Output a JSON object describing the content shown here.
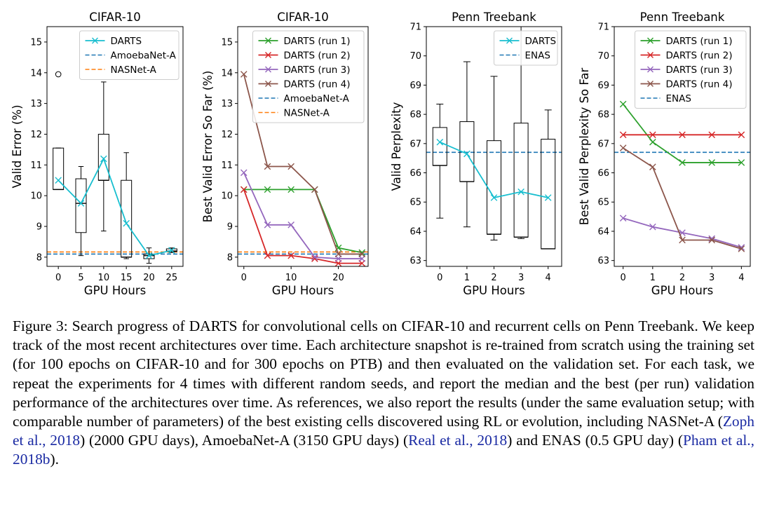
{
  "colors": {
    "cyan": "#17becf",
    "blue_dashed": "#1f77b4",
    "orange_dashed": "#ff7f0e",
    "green": "#2ca02c",
    "red": "#d62728",
    "purple": "#9467bd",
    "brown": "#8c564b",
    "citation": "#1a2aa3"
  },
  "chart_data": [
    {
      "type": "box",
      "title": "CIFAR-10",
      "xlabel": "GPU Hours",
      "ylabel": "Valid Error (%)",
      "xlim": [
        -2.5,
        27.5
      ],
      "ylim": [
        7.7,
        15.5
      ],
      "xticks": [
        0,
        5,
        10,
        15,
        20,
        25
      ],
      "yticks": [
        8,
        9,
        10,
        11,
        12,
        13,
        14,
        15
      ],
      "boxes": [
        {
          "x": 0,
          "whisker_low": 10.2,
          "q1": 10.2,
          "median": 10.2,
          "q3": 11.55,
          "whisker_high": 11.55,
          "outliers": [
            13.95
          ]
        },
        {
          "x": 5,
          "whisker_low": 8.05,
          "q1": 8.8,
          "median": 9.75,
          "q3": 10.55,
          "whisker_high": 10.95,
          "outliers": []
        },
        {
          "x": 10,
          "whisker_low": 8.85,
          "q1": 10.5,
          "median": 10.5,
          "q3": 12.0,
          "whisker_high": 13.7,
          "outliers": []
        },
        {
          "x": 15,
          "whisker_low": 7.95,
          "q1": 8.0,
          "median": 8.0,
          "q3": 10.5,
          "whisker_high": 11.4,
          "outliers": []
        },
        {
          "x": 20,
          "whisker_low": 7.8,
          "q1": 7.95,
          "median": 8.05,
          "q3": 8.1,
          "whisker_high": 8.3,
          "outliers": []
        },
        {
          "x": 25,
          "whisker_low": 8.15,
          "q1": 8.18,
          "median": 8.2,
          "q3": 8.27,
          "whisker_high": 8.3,
          "outliers": []
        }
      ],
      "series": [
        {
          "name": "DARTS",
          "color": "#17becf",
          "marker": "x",
          "x": [
            0,
            5,
            10,
            15,
            20,
            25
          ],
          "y": [
            10.5,
            9.75,
            11.2,
            9.1,
            8.05,
            8.22
          ]
        }
      ],
      "reference_lines": [
        {
          "name": "AmoebaNet-A",
          "y": 8.1,
          "color": "#1f77b4"
        },
        {
          "name": "NASNet-A",
          "y": 8.17,
          "color": "#ff7f0e"
        }
      ],
      "legend": "top-right"
    },
    {
      "type": "line",
      "title": "CIFAR-10",
      "xlabel": "GPU Hours",
      "ylabel": "Best Valid Error So Far (%)",
      "xlim": [
        -1.3,
        26.3
      ],
      "ylim": [
        7.7,
        15.5
      ],
      "xticks": [
        0,
        10,
        20
      ],
      "yticks": [
        8,
        9,
        10,
        11,
        12,
        13,
        14,
        15
      ],
      "series": [
        {
          "name": "DARTS (run 1)",
          "color": "#2ca02c",
          "marker": "x",
          "x": [
            0,
            5,
            10,
            15,
            20,
            25
          ],
          "y": [
            10.2,
            10.2,
            10.2,
            10.2,
            8.3,
            8.15
          ]
        },
        {
          "name": "DARTS (run 2)",
          "color": "#d62728",
          "marker": "x",
          "x": [
            0,
            5,
            10,
            15,
            20,
            25
          ],
          "y": [
            10.2,
            8.05,
            8.05,
            7.95,
            7.8,
            7.8
          ]
        },
        {
          "name": "DARTS (run 3)",
          "color": "#9467bd",
          "marker": "x",
          "x": [
            0,
            5,
            10,
            15,
            20,
            25
          ],
          "y": [
            10.75,
            9.05,
            9.05,
            8.0,
            7.95,
            7.95
          ]
        },
        {
          "name": "DARTS (run 4)",
          "color": "#8c564b",
          "marker": "x",
          "x": [
            0,
            5,
            10,
            15,
            20,
            25
          ],
          "y": [
            13.95,
            10.95,
            10.95,
            10.2,
            8.1,
            8.1
          ]
        }
      ],
      "reference_lines": [
        {
          "name": "AmoebaNet-A",
          "y": 8.1,
          "color": "#1f77b4"
        },
        {
          "name": "NASNet-A",
          "y": 8.17,
          "color": "#ff7f0e"
        }
      ],
      "legend": "top-right"
    },
    {
      "type": "box",
      "title": "Penn Treebank",
      "xlabel": "GPU Hours",
      "ylabel": "Valid Perplexity",
      "xlim": [
        -0.5,
        4.5
      ],
      "ylim": [
        62.8,
        71.0
      ],
      "xticks": [
        0,
        1,
        2,
        3,
        4
      ],
      "yticks": [
        63,
        64,
        65,
        66,
        67,
        68,
        69,
        70,
        71
      ],
      "boxes": [
        {
          "x": 0,
          "whisker_low": 64.45,
          "q1": 66.25,
          "median": 66.25,
          "q3": 67.55,
          "whisker_high": 68.35,
          "outliers": []
        },
        {
          "x": 1,
          "whisker_low": 64.15,
          "q1": 65.7,
          "median": 65.7,
          "q3": 67.75,
          "whisker_high": 69.8,
          "outliers": []
        },
        {
          "x": 2,
          "whisker_low": 63.7,
          "q1": 63.9,
          "median": 63.9,
          "q3": 67.1,
          "whisker_high": 69.3,
          "outliers": []
        },
        {
          "x": 3,
          "whisker_low": 63.75,
          "q1": 63.8,
          "median": 63.8,
          "q3": 67.7,
          "whisker_high": 71.0,
          "outliers": []
        },
        {
          "x": 4,
          "whisker_low": 63.4,
          "q1": 63.4,
          "median": 63.4,
          "q3": 67.15,
          "whisker_high": 68.15,
          "outliers": []
        }
      ],
      "series": [
        {
          "name": "DARTS",
          "color": "#17becf",
          "marker": "x",
          "x": [
            0,
            1,
            2,
            3,
            4
          ],
          "y": [
            67.05,
            66.65,
            65.15,
            65.35,
            65.15
          ]
        }
      ],
      "reference_lines": [
        {
          "name": "ENAS",
          "y": 66.7,
          "color": "#1f77b4"
        }
      ],
      "legend": "top-right"
    },
    {
      "type": "line",
      "title": "Penn Treebank",
      "xlabel": "GPU Hours",
      "ylabel": "Best Valid Perplexity So Far",
      "xlim": [
        -0.3,
        4.3
      ],
      "ylim": [
        62.8,
        71.0
      ],
      "xticks": [
        0,
        1,
        2,
        3,
        4
      ],
      "yticks": [
        63,
        64,
        65,
        66,
        67,
        68,
        69,
        70,
        71
      ],
      "series": [
        {
          "name": "DARTS (run 1)",
          "color": "#2ca02c",
          "marker": "x",
          "x": [
            0,
            1,
            2,
            3,
            4
          ],
          "y": [
            68.35,
            67.05,
            66.35,
            66.35,
            66.35
          ]
        },
        {
          "name": "DARTS (run 2)",
          "color": "#d62728",
          "marker": "x",
          "x": [
            0,
            1,
            2,
            3,
            4
          ],
          "y": [
            67.3,
            67.3,
            67.3,
            67.3,
            67.3
          ]
        },
        {
          "name": "DARTS (run 3)",
          "color": "#9467bd",
          "marker": "x",
          "x": [
            0,
            1,
            2,
            3,
            4
          ],
          "y": [
            64.45,
            64.15,
            63.95,
            63.75,
            63.45
          ]
        },
        {
          "name": "DARTS (run 4)",
          "color": "#8c564b",
          "marker": "x",
          "x": [
            0,
            1,
            2,
            3,
            4
          ],
          "y": [
            66.85,
            66.2,
            63.7,
            63.7,
            63.4
          ]
        }
      ],
      "reference_lines": [
        {
          "name": "ENAS",
          "y": 66.7,
          "color": "#1f77b4"
        }
      ],
      "legend": "top-right"
    }
  ],
  "caption": {
    "figure_label": "Figure 3:",
    "text_1": "Search progress of DARTS for convolutional cells on CIFAR-10 and recurrent cells on Penn Treebank. We keep track of the most recent architectures over time. Each architecture snapshot is re-trained from scratch using the training set (for 100 epochs on CIFAR-10 and for 300 epochs on PTB) and then evaluated on the validation set. For each task, we repeat the experiments for 4 times with different random seeds, and report the median and the best (per run) validation performance of the architectures over time. As references, we also report the results (under the same evaluation setup; with comparable number of parameters) of the best existing cells discovered using RL or evolution, including NASNet-A (",
    "cite_1": "Zoph et al., 2018",
    "text_2": ") (2000 GPU days), AmoebaNet-A (3150 GPU days) (",
    "cite_2": "Real et al., 2018",
    "text_3": ") and ENAS (0.5 GPU day) (",
    "cite_3": "Pham et al., 2018b",
    "text_4": ")."
  }
}
